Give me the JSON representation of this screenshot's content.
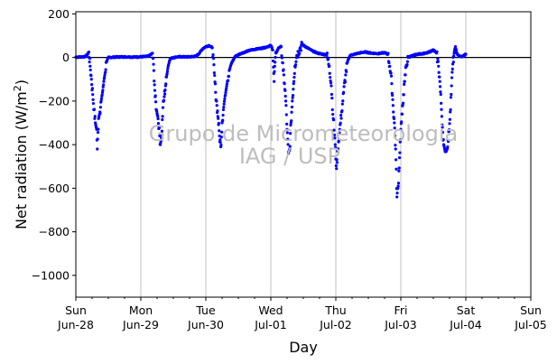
{
  "chart_data": {
    "type": "scatter",
    "xlabel": "Day",
    "ylabel": "Net radiation (W/m",
    "ylabel_sup": "2",
    "ylabel_close": ")",
    "ylim": [
      -1100,
      210
    ],
    "yticks": [
      200,
      0,
      -200,
      -400,
      -600,
      -800,
      -1000
    ],
    "ytick_labels": [
      "200",
      "0",
      "−200",
      "−400",
      "−600",
      "−800",
      "−1000"
    ],
    "xlim_days": [
      0,
      7
    ],
    "xticks": [
      {
        "day": 0,
        "weekday": "Sun",
        "date": "Jun-28"
      },
      {
        "day": 1,
        "weekday": "Mon",
        "date": "Jun-29"
      },
      {
        "day": 2,
        "weekday": "Tue",
        "date": "Jun-30"
      },
      {
        "day": 3,
        "weekday": "Wed",
        "date": "Jul-01"
      },
      {
        "day": 4,
        "weekday": "Thu",
        "date": "Jul-02"
      },
      {
        "day": 5,
        "weekday": "Fri",
        "date": "Jul-03"
      },
      {
        "day": 6,
        "weekday": "Sat",
        "date": "Jul-04"
      },
      {
        "day": 7,
        "weekday": "Sun",
        "date": "Jul-05"
      }
    ],
    "grid": "vertical",
    "reference_line_y": 0,
    "point_color": "#0000ff",
    "watermark_line1": "Grupo de Micrometeorologia",
    "watermark_line2": "IAG / USP",
    "series": [
      {
        "points": [
          [
            0.0,
            2
          ],
          [
            0.05,
            2
          ],
          [
            0.1,
            3
          ],
          [
            0.15,
            5
          ],
          [
            0.18,
            15
          ],
          [
            0.2,
            25
          ],
          [
            0.22,
            -40
          ],
          [
            0.24,
            -100
          ],
          [
            0.26,
            -170
          ],
          [
            0.28,
            -240
          ],
          [
            0.3,
            -300
          ],
          [
            0.32,
            -330
          ],
          [
            0.33,
            -420
          ],
          [
            0.35,
            -280
          ],
          [
            0.37,
            -250
          ],
          [
            0.39,
            -200
          ],
          [
            0.41,
            -160
          ],
          [
            0.43,
            -110
          ],
          [
            0.45,
            -70
          ],
          [
            0.47,
            -20
          ],
          [
            0.5,
            0
          ],
          [
            0.6,
            2
          ],
          [
            0.7,
            3
          ],
          [
            0.8,
            3
          ],
          [
            0.9,
            2
          ],
          [
            1.0,
            3
          ],
          [
            1.1,
            5
          ],
          [
            1.14,
            10
          ],
          [
            1.18,
            20
          ],
          [
            1.2,
            -60
          ],
          [
            1.22,
            -180
          ],
          [
            1.24,
            -240
          ],
          [
            1.26,
            -270
          ],
          [
            1.28,
            -320
          ],
          [
            1.3,
            -400
          ],
          [
            1.32,
            -360
          ],
          [
            1.34,
            -230
          ],
          [
            1.36,
            -180
          ],
          [
            1.38,
            -130
          ],
          [
            1.4,
            -80
          ],
          [
            1.42,
            -40
          ],
          [
            1.45,
            -5
          ],
          [
            1.55,
            3
          ],
          [
            1.65,
            3
          ],
          [
            1.75,
            3
          ],
          [
            1.85,
            6
          ],
          [
            1.9,
            20
          ],
          [
            1.95,
            40
          ],
          [
            2.0,
            50
          ],
          [
            2.05,
            55
          ],
          [
            2.1,
            45
          ],
          [
            2.13,
            -70
          ],
          [
            2.15,
            -160
          ],
          [
            2.17,
            -220
          ],
          [
            2.19,
            -280
          ],
          [
            2.21,
            -360
          ],
          [
            2.23,
            -410
          ],
          [
            2.25,
            -300
          ],
          [
            2.27,
            -240
          ],
          [
            2.29,
            -190
          ],
          [
            2.31,
            -150
          ],
          [
            2.33,
            -110
          ],
          [
            2.36,
            -60
          ],
          [
            2.39,
            -30
          ],
          [
            2.45,
            5
          ],
          [
            2.55,
            20
          ],
          [
            2.7,
            35
          ],
          [
            2.8,
            40
          ],
          [
            2.9,
            45
          ],
          [
            2.95,
            50
          ],
          [
            3.0,
            55
          ],
          [
            3.03,
            35
          ],
          [
            3.05,
            -110
          ],
          [
            3.06,
            -40
          ],
          [
            3.08,
            20
          ],
          [
            3.12,
            45
          ],
          [
            3.16,
            50
          ],
          [
            3.19,
            -60
          ],
          [
            3.21,
            -120
          ],
          [
            3.23,
            -200
          ],
          [
            3.25,
            -330
          ],
          [
            3.27,
            -440
          ],
          [
            3.29,
            -420
          ],
          [
            3.31,
            -300
          ],
          [
            3.33,
            -200
          ],
          [
            3.35,
            -120
          ],
          [
            3.37,
            -40
          ],
          [
            3.4,
            10
          ],
          [
            3.48,
            60
          ],
          [
            3.56,
            45
          ],
          [
            3.64,
            30
          ],
          [
            3.72,
            20
          ],
          [
            3.8,
            15
          ],
          [
            3.86,
            12
          ],
          [
            3.9,
            -40
          ],
          [
            3.93,
            -130
          ],
          [
            3.96,
            -280
          ],
          [
            3.99,
            -400
          ],
          [
            4.01,
            -510
          ],
          [
            4.03,
            -420
          ],
          [
            4.06,
            -330
          ],
          [
            4.09,
            -250
          ],
          [
            4.12,
            -160
          ],
          [
            4.15,
            -80
          ],
          [
            4.18,
            -20
          ],
          [
            4.22,
            10
          ],
          [
            4.35,
            20
          ],
          [
            4.45,
            25
          ],
          [
            4.55,
            20
          ],
          [
            4.65,
            18
          ],
          [
            4.75,
            22
          ],
          [
            4.8,
            15
          ],
          [
            4.83,
            -40
          ],
          [
            4.86,
            -120
          ],
          [
            4.88,
            -220
          ],
          [
            4.9,
            -300
          ],
          [
            4.92,
            -420
          ],
          [
            4.94,
            -640
          ],
          [
            4.96,
            -590
          ],
          [
            4.98,
            -460
          ],
          [
            5.0,
            -330
          ],
          [
            5.02,
            -260
          ],
          [
            5.04,
            -170
          ],
          [
            5.06,
            -110
          ],
          [
            5.08,
            -40
          ],
          [
            5.12,
            2
          ],
          [
            5.25,
            15
          ],
          [
            5.4,
            20
          ],
          [
            5.5,
            35
          ],
          [
            5.55,
            20
          ],
          [
            5.58,
            -40
          ],
          [
            5.6,
            -110
          ],
          [
            5.62,
            -210
          ],
          [
            5.64,
            -320
          ],
          [
            5.66,
            -400
          ],
          [
            5.68,
            -430
          ],
          [
            5.7,
            -430
          ],
          [
            5.72,
            -410
          ],
          [
            5.74,
            -340
          ],
          [
            5.76,
            -250
          ],
          [
            5.78,
            -130
          ],
          [
            5.8,
            -30
          ],
          [
            5.82,
            20
          ],
          [
            5.84,
            50
          ],
          [
            5.86,
            20
          ],
          [
            5.9,
            5
          ],
          [
            5.95,
            5
          ],
          [
            6.0,
            15
          ]
        ]
      }
    ]
  }
}
